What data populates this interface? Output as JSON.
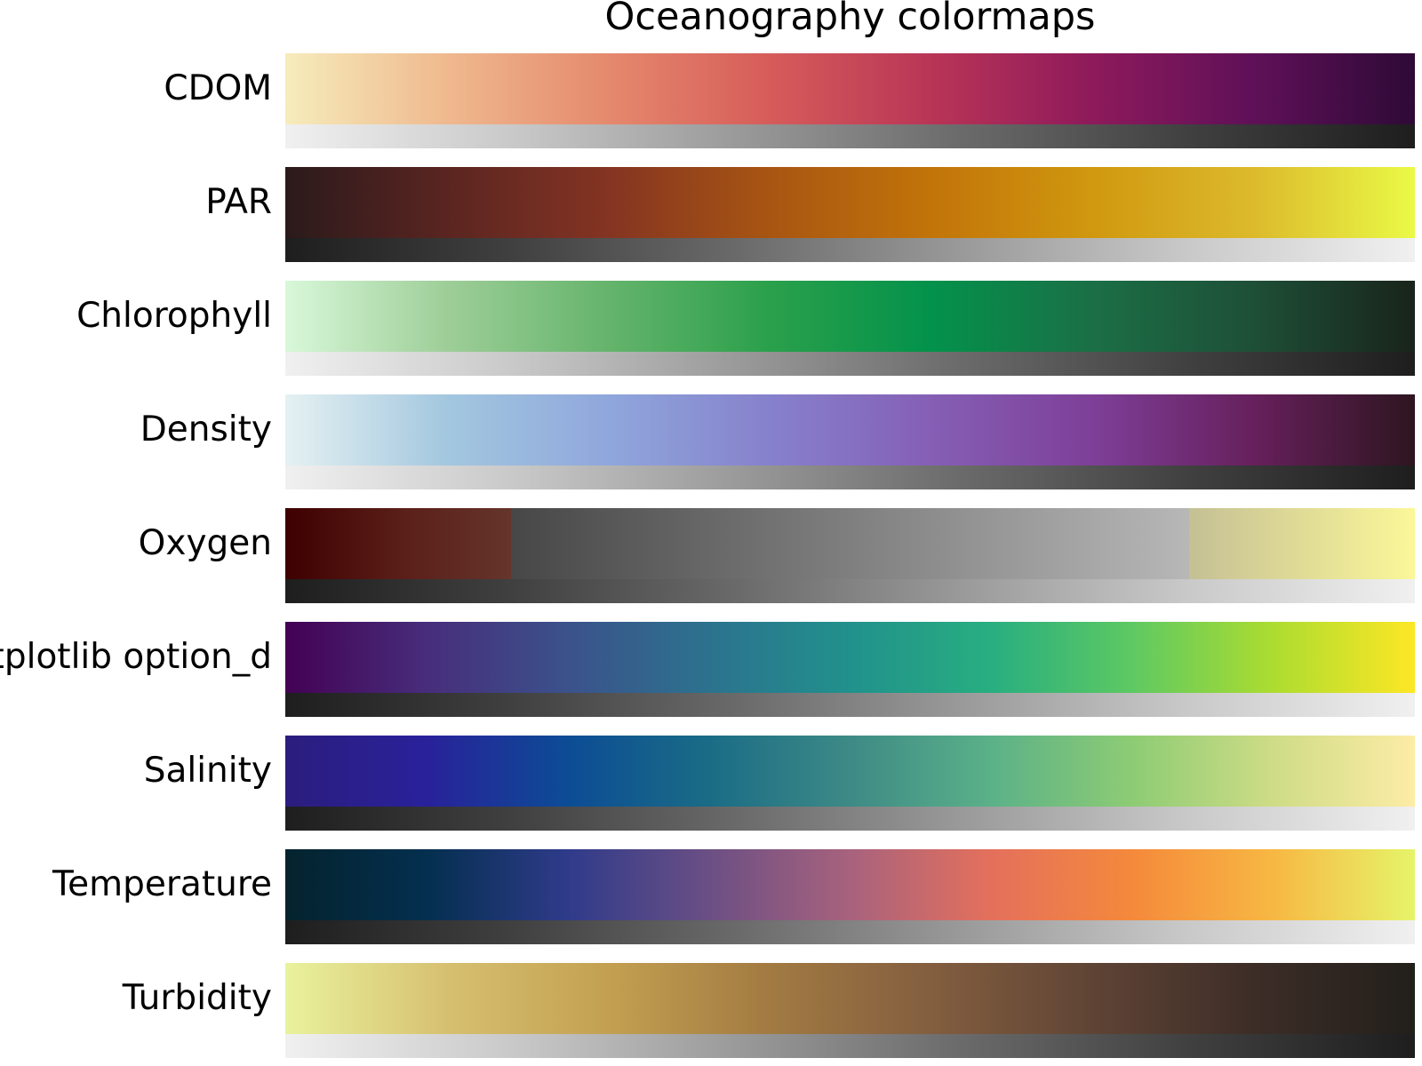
{
  "chart_data": {
    "type": "colormap-strips",
    "title": "Oceanography colormaps",
    "rows": [
      {
        "name": "CDOM",
        "colors": [
          "#f6ecbc",
          "#efb98e",
          "#e5896d",
          "#d65c5a",
          "#b93557",
          "#8e1a5b",
          "#5f1058",
          "#2e0a37"
        ],
        "gray": "light-to-dark"
      },
      {
        "name": "PAR",
        "colors": [
          "#2b1a1b",
          "#5a2521",
          "#843422",
          "#a85512",
          "#c27409",
          "#d0980f",
          "#dcba2c",
          "#eafa46"
        ],
        "gray": "dark-to-light"
      },
      {
        "name": "Chlorophyll",
        "colors": [
          "#d8f8d9",
          "#9ece98",
          "#65b46c",
          "#2aa04b",
          "#03924b",
          "#1b6f46",
          "#1e4f37",
          "#19241b"
        ],
        "gray": "light-to-dark"
      },
      {
        "name": "Density",
        "colors": [
          "#e5f1f2",
          "#a3c7df",
          "#8fa7dc",
          "#8681cc",
          "#855fb5",
          "#7e3f98",
          "#66205c",
          "#2e1520"
        ],
        "gray": "light-to-dark"
      },
      {
        "name": "Oxygen",
        "colors": [
          "#3e0000",
          "#5a1e18",
          "#65352c"
        ],
        "colors_mid": [
          "#474747",
          "#b7b7b7"
        ],
        "colors_high": [
          "#c5c094",
          "#fbf799"
        ],
        "gray": "dark-to-light"
      },
      {
        "name": "matplotlib option_d",
        "colors": [
          "#440154",
          "#472d7b",
          "#3b528b",
          "#2c728e",
          "#21918c",
          "#28ae80",
          "#5ec962",
          "#addc30",
          "#fde725"
        ],
        "gray": "dark-to-light"
      },
      {
        "name": "Salinity",
        "colors": [
          "#2b1d7e",
          "#29219a",
          "#0c4c95",
          "#1a6c86",
          "#3d8a86",
          "#5bb188",
          "#8dcc74",
          "#cfdc86",
          "#fdeca6"
        ],
        "gray": "dark-to-light"
      },
      {
        "name": "Temperature",
        "colors": [
          "#04232d",
          "#042f4f",
          "#2f3b8a",
          "#6b4f84",
          "#a8627d",
          "#e4705c",
          "#f5893b",
          "#f7b843",
          "#e6f469"
        ],
        "gray": "dark-to-light"
      },
      {
        "name": "Turbidity",
        "colors": [
          "#e9f29c",
          "#d6c070",
          "#c3a051",
          "#a27a42",
          "#835e3f",
          "#5f4435",
          "#3d2d27",
          "#221f1b"
        ],
        "gray": "light-to-dark"
      }
    ]
  }
}
